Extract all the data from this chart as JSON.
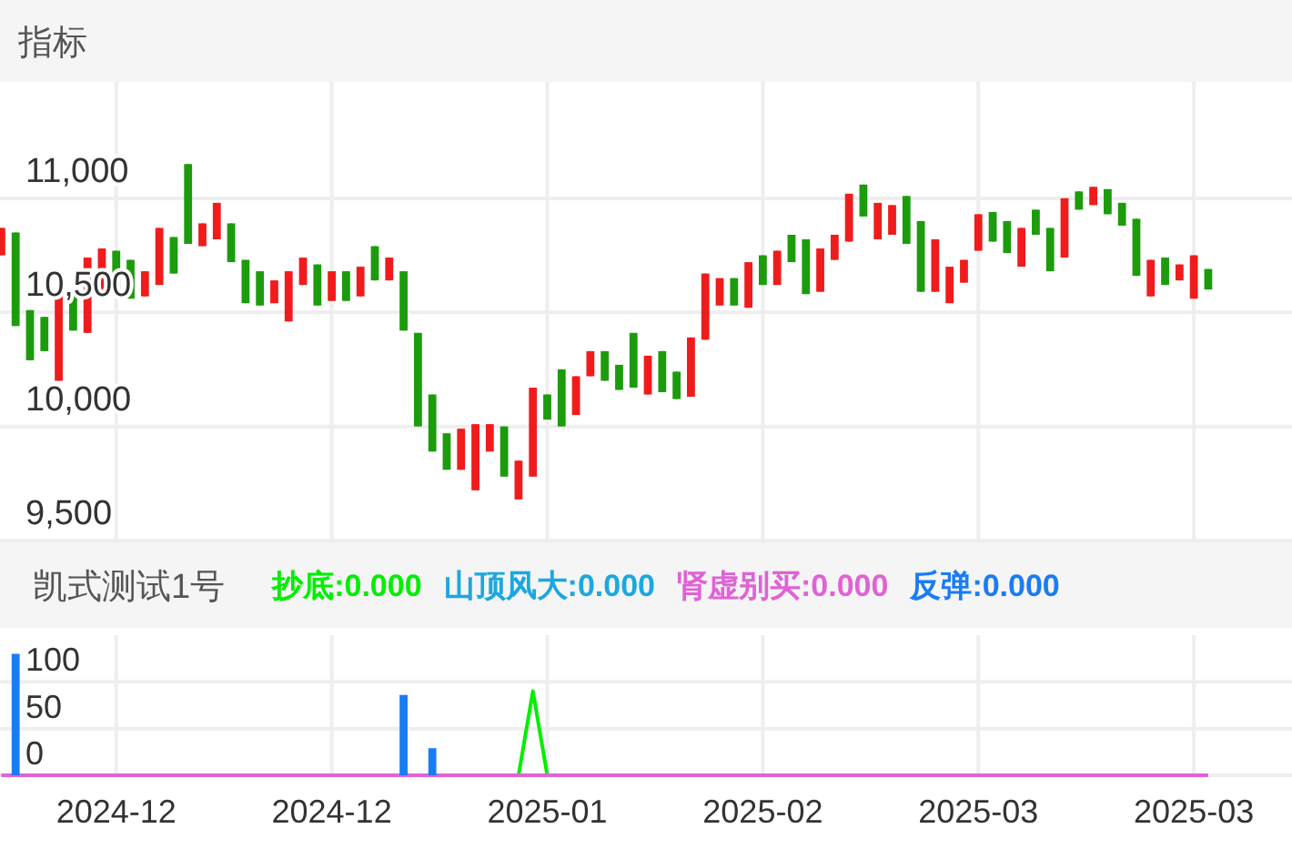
{
  "chart_data": [
    {
      "type": "candlestick",
      "title": "指标",
      "categories": [
        null,
        null,
        null,
        null,
        null,
        null,
        null,
        null,
        "2024-12",
        null,
        null,
        null,
        null,
        null,
        null,
        null,
        null,
        null,
        null,
        null,
        null,
        null,
        null,
        "2024-12",
        null,
        null,
        null,
        null,
        null,
        null,
        null,
        null,
        null,
        null,
        null,
        null,
        null,
        null,
        "2025-01",
        null,
        null,
        null,
        null,
        null,
        null,
        null,
        null,
        null,
        null,
        null,
        null,
        null,
        null,
        "2025-02",
        null,
        null,
        null,
        null,
        null,
        null,
        null,
        null,
        null,
        null,
        null,
        null,
        null,
        null,
        "2025-03",
        null,
        null,
        null,
        null,
        null,
        null,
        null,
        null,
        null,
        null,
        null,
        null,
        null,
        null,
        "2025-03",
        null
      ],
      "ohlc": [
        [
          10750,
          10870,
          10750,
          10870
        ],
        [
          10850,
          10850,
          10440,
          10440
        ],
        [
          10510,
          10510,
          10290,
          10290
        ],
        [
          10480,
          10480,
          10330,
          10330
        ],
        [
          10200,
          10570,
          10200,
          10570
        ],
        [
          10590,
          10590,
          10420,
          10420
        ],
        [
          10410,
          10740,
          10410,
          10740
        ],
        [
          10590,
          10780,
          10590,
          10780
        ],
        [
          10770,
          10770,
          10580,
          10580
        ],
        [
          10730,
          10730,
          10560,
          10560
        ],
        [
          10570,
          10680,
          10570,
          10680
        ],
        [
          10620,
          10870,
          10620,
          10870
        ],
        [
          10830,
          10830,
          10670,
          10670
        ],
        [
          11150,
          11150,
          10800,
          10800
        ],
        [
          10790,
          10890,
          10790,
          10890
        ],
        [
          10820,
          10980,
          10820,
          10980
        ],
        [
          10890,
          10890,
          10720,
          10720
        ],
        [
          10730,
          10730,
          10540,
          10540
        ],
        [
          10680,
          10680,
          10530,
          10530
        ],
        [
          10540,
          10640,
          10540,
          10640
        ],
        [
          10460,
          10680,
          10460,
          10680
        ],
        [
          10620,
          10740,
          10620,
          10740
        ],
        [
          10710,
          10710,
          10530,
          10530
        ],
        [
          10550,
          10680,
          10550,
          10680
        ],
        [
          10680,
          10680,
          10550,
          10550
        ],
        [
          10570,
          10700,
          10570,
          10700
        ],
        [
          10790,
          10790,
          10640,
          10640
        ],
        [
          10640,
          10740,
          10640,
          10740
        ],
        [
          10680,
          10680,
          10420,
          10420
        ],
        [
          10410,
          10410,
          10000,
          10000
        ],
        [
          10140,
          10140,
          9890,
          9890
        ],
        [
          9970,
          9970,
          9810,
          9810
        ],
        [
          9810,
          9990,
          9810,
          9990
        ],
        [
          9720,
          10010,
          9720,
          10010
        ],
        [
          9890,
          10010,
          9890,
          10010
        ],
        [
          10000,
          10000,
          9780,
          9780
        ],
        [
          9680,
          9850,
          9680,
          9850
        ],
        [
          9780,
          10170,
          9780,
          10170
        ],
        [
          10140,
          10140,
          10030,
          10030
        ],
        [
          10250,
          10250,
          10000,
          10000
        ],
        [
          10050,
          10220,
          10050,
          10220
        ],
        [
          10220,
          10330,
          10220,
          10330
        ],
        [
          10330,
          10330,
          10200,
          10200
        ],
        [
          10270,
          10270,
          10160,
          10160
        ],
        [
          10410,
          10410,
          10170,
          10170
        ],
        [
          10140,
          10310,
          10140,
          10310
        ],
        [
          10330,
          10330,
          10150,
          10150
        ],
        [
          10240,
          10240,
          10120,
          10120
        ],
        [
          10130,
          10390,
          10130,
          10390
        ],
        [
          10380,
          10670,
          10380,
          10670
        ],
        [
          10530,
          10650,
          10530,
          10650
        ],
        [
          10650,
          10650,
          10530,
          10530
        ],
        [
          10520,
          10720,
          10520,
          10720
        ],
        [
          10750,
          10750,
          10620,
          10620
        ],
        [
          10620,
          10770,
          10620,
          10770
        ],
        [
          10840,
          10840,
          10720,
          10720
        ],
        [
          10820,
          10820,
          10580,
          10580
        ],
        [
          10590,
          10780,
          10590,
          10780
        ],
        [
          10730,
          10840,
          10730,
          10840
        ],
        [
          10810,
          11020,
          10810,
          11020
        ],
        [
          11060,
          11060,
          10920,
          10920
        ],
        [
          10820,
          10980,
          10820,
          10980
        ],
        [
          10840,
          10970,
          10840,
          10970
        ],
        [
          11010,
          11010,
          10800,
          10800
        ],
        [
          10900,
          10900,
          10590,
          10590
        ],
        [
          10590,
          10820,
          10590,
          10820
        ],
        [
          10540,
          10700,
          10540,
          10700
        ],
        [
          10630,
          10730,
          10630,
          10730
        ],
        [
          10770,
          10930,
          10770,
          10930
        ],
        [
          10940,
          10940,
          10810,
          10810
        ],
        [
          10900,
          10900,
          10760,
          10760
        ],
        [
          10700,
          10870,
          10700,
          10870
        ],
        [
          10950,
          10950,
          10840,
          10840
        ],
        [
          10870,
          10870,
          10680,
          10680
        ],
        [
          10740,
          11000,
          10740,
          11000
        ],
        [
          11030,
          11030,
          10950,
          10950
        ],
        [
          10970,
          11050,
          10970,
          11050
        ],
        [
          11040,
          11040,
          10930,
          10930
        ],
        [
          10980,
          10980,
          10880,
          10880
        ],
        [
          10910,
          10910,
          10660,
          10660
        ],
        [
          10570,
          10730,
          10570,
          10730
        ],
        [
          10740,
          10740,
          10620,
          10620
        ],
        [
          10640,
          10710,
          10640,
          10710
        ],
        [
          10560,
          10750,
          10560,
          10750
        ],
        [
          10690,
          10690,
          10600,
          10600
        ]
      ],
      "colors": [
        "#f01c1c",
        "#1c9c0c",
        "#1c9c0c",
        "#1c9c0c",
        "#f01c1c",
        "#1c9c0c",
        "#f01c1c",
        "#f01c1c",
        "#1c9c0c",
        "#1c9c0c",
        "#f01c1c",
        "#f01c1c",
        "#1c9c0c",
        "#1c9c0c",
        "#f01c1c",
        "#f01c1c",
        "#1c9c0c",
        "#1c9c0c",
        "#1c9c0c",
        "#f01c1c",
        "#f01c1c",
        "#f01c1c",
        "#1c9c0c",
        "#f01c1c",
        "#1c9c0c",
        "#f01c1c",
        "#1c9c0c",
        "#f01c1c",
        "#1c9c0c",
        "#1c9c0c",
        "#1c9c0c",
        "#1c9c0c",
        "#f01c1c",
        "#f01c1c",
        "#f01c1c",
        "#1c9c0c",
        "#f01c1c",
        "#f01c1c",
        "#1c9c0c",
        "#1c9c0c",
        "#f01c1c",
        "#f01c1c",
        "#1c9c0c",
        "#1c9c0c",
        "#1c9c0c",
        "#f01c1c",
        "#1c9c0c",
        "#1c9c0c",
        "#f01c1c",
        "#f01c1c",
        "#f01c1c",
        "#1c9c0c",
        "#f01c1c",
        "#1c9c0c",
        "#f01c1c",
        "#1c9c0c",
        "#1c9c0c",
        "#f01c1c",
        "#f01c1c",
        "#f01c1c",
        "#1c9c0c",
        "#f01c1c",
        "#f01c1c",
        "#1c9c0c",
        "#1c9c0c",
        "#f01c1c",
        "#f01c1c",
        "#f01c1c",
        "#f01c1c",
        "#1c9c0c",
        "#1c9c0c",
        "#f01c1c",
        "#1c9c0c",
        "#1c9c0c",
        "#f01c1c",
        "#1c9c0c",
        "#f01c1c",
        "#1c9c0c",
        "#1c9c0c",
        "#1c9c0c",
        "#f01c1c",
        "#1c9c0c",
        "#f01c1c",
        "#f01c1c",
        "#1c9c0c"
      ],
      "ylim": [
        9500,
        11510
      ],
      "yticks": [
        {
          "value": 9500,
          "label": "9,500"
        },
        {
          "value": 10000,
          "label": "10,000"
        },
        {
          "value": 10500,
          "label": "10,500"
        },
        {
          "value": 11000,
          "label": "11,000"
        }
      ],
      "grid": true,
      "tick_labels": "y"
    },
    {
      "type": "line",
      "title": "凯式测试1号",
      "categories": [
        null,
        null,
        null,
        null,
        null,
        null,
        null,
        null,
        "2024-12",
        null,
        null,
        null,
        null,
        null,
        null,
        null,
        null,
        null,
        null,
        null,
        null,
        null,
        null,
        "2024-12",
        null,
        null,
        null,
        null,
        null,
        null,
        null,
        null,
        null,
        null,
        null,
        null,
        null,
        null,
        "2025-01",
        null,
        null,
        null,
        null,
        null,
        null,
        null,
        null,
        null,
        null,
        null,
        null,
        null,
        null,
        "2025-02",
        null,
        null,
        null,
        null,
        null,
        null,
        null,
        null,
        null,
        null,
        null,
        null,
        null,
        null,
        "2025-03",
        null,
        null,
        null,
        null,
        null,
        null,
        null,
        null,
        null,
        null,
        null,
        null,
        null,
        null,
        "2025-03",
        null
      ],
      "series": [
        {
          "name": "抄底:0.000",
          "color": "#00ee00",
          "values": [
            null,
            null,
            null,
            null,
            null,
            null,
            null,
            null,
            null,
            null,
            null,
            null,
            null,
            null,
            null,
            null,
            null,
            null,
            null,
            null,
            null,
            null,
            null,
            null,
            null,
            null,
            null,
            null,
            null,
            null,
            null,
            null,
            null,
            null,
            null,
            null,
            0,
            90,
            0,
            null,
            null,
            null,
            null,
            null,
            null,
            null,
            null,
            null,
            null,
            null,
            null,
            null,
            null,
            null,
            null,
            null,
            null,
            null,
            null,
            null,
            null,
            null,
            null,
            null,
            null,
            null,
            null,
            null,
            null,
            null,
            null,
            null,
            null,
            null,
            null,
            null,
            null,
            null,
            null,
            null,
            null,
            null,
            null,
            null,
            null
          ]
        },
        {
          "name": "山顶风大:0.000",
          "color": "#1ba8e0",
          "values": [
            null,
            null,
            null,
            null,
            null,
            null,
            null,
            null,
            null,
            null,
            null,
            null,
            null,
            null,
            null,
            null,
            null,
            null,
            null,
            null,
            null,
            null,
            null,
            null,
            null,
            null,
            null,
            null,
            null,
            null,
            null,
            null,
            null,
            null,
            null,
            null,
            null,
            null,
            null,
            null,
            null,
            null,
            null,
            null,
            null,
            null,
            null,
            null,
            null,
            null,
            null,
            null,
            null,
            null,
            null,
            null,
            null,
            null,
            null,
            null,
            null,
            null,
            null,
            null,
            null,
            null,
            null,
            null,
            null,
            null,
            null,
            null,
            null,
            null,
            null,
            null,
            null,
            null,
            null,
            null,
            null,
            null,
            null,
            null,
            null
          ]
        },
        {
          "name": "肾虚别买:0.000",
          "color": "#e062d6",
          "values": [
            0,
            0,
            0,
            0,
            0,
            0,
            0,
            0,
            0,
            0,
            0,
            0,
            0,
            0,
            0,
            0,
            0,
            0,
            0,
            0,
            0,
            0,
            0,
            0,
            0,
            0,
            0,
            0,
            0,
            0,
            0,
            0,
            0,
            0,
            0,
            0,
            0,
            0,
            0,
            0,
            0,
            0,
            0,
            0,
            0,
            0,
            0,
            0,
            0,
            0,
            0,
            0,
            0,
            0,
            0,
            0,
            0,
            0,
            0,
            0,
            0,
            0,
            0,
            0,
            0,
            0,
            0,
            0,
            0,
            0,
            0,
            0,
            0,
            0,
            0,
            0,
            0,
            0,
            0,
            0,
            0,
            0,
            0,
            0,
            0
          ]
        },
        {
          "name": "反弹:0.000",
          "type": "bar",
          "color": "#1a7cf5",
          "values": [
            null,
            130,
            null,
            null,
            null,
            null,
            null,
            null,
            null,
            null,
            null,
            null,
            null,
            null,
            null,
            null,
            null,
            null,
            null,
            null,
            null,
            null,
            null,
            null,
            null,
            null,
            null,
            null,
            86,
            null,
            29,
            null,
            null,
            null,
            null,
            null,
            null,
            null,
            null,
            null,
            null,
            null,
            null,
            null,
            null,
            null,
            null,
            null,
            null,
            null,
            null,
            null,
            null,
            null,
            null,
            null,
            null,
            null,
            null,
            null,
            null,
            null,
            null,
            null,
            null,
            null,
            null,
            null,
            null,
            null,
            null,
            null,
            null,
            null,
            null,
            null,
            null,
            null,
            null,
            null,
            null,
            null,
            null,
            null,
            null
          ]
        }
      ],
      "ylim": [
        0,
        150
      ],
      "yticks": [
        0,
        50,
        100
      ],
      "grid": true,
      "legend": "top"
    }
  ]
}
